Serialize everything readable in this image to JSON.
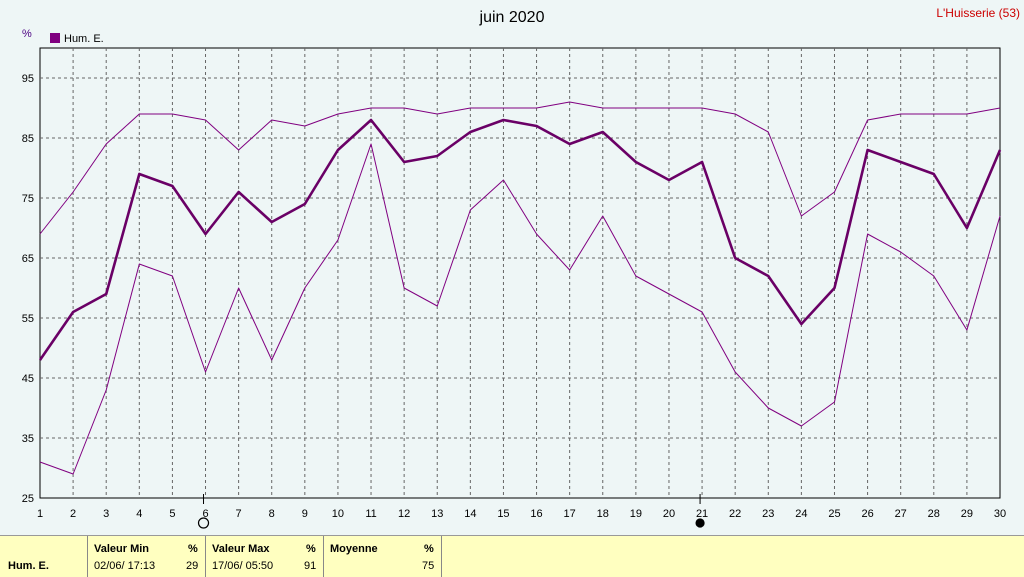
{
  "chart_data": {
    "type": "line",
    "title": "juin 2020",
    "station": "L'Huisserie (53)",
    "unit": "%",
    "legend": "Hum. E.",
    "x": [
      1,
      2,
      3,
      4,
      5,
      6,
      7,
      8,
      9,
      10,
      11,
      12,
      13,
      14,
      15,
      16,
      17,
      18,
      19,
      20,
      21,
      22,
      23,
      24,
      25,
      26,
      27,
      28,
      29,
      30
    ],
    "ylim": [
      25,
      100
    ],
    "yticks": [
      25,
      35,
      45,
      55,
      65,
      75,
      85,
      95
    ],
    "grid": true,
    "legend_position": "top-left",
    "series": [
      {
        "role": "max",
        "color": "#800080",
        "values": [
          69,
          76,
          84,
          89,
          89,
          88,
          83,
          88,
          87,
          89,
          90,
          90,
          89,
          90,
          90,
          90,
          91,
          90,
          90,
          90,
          90,
          89,
          86,
          72,
          76,
          88,
          89,
          89,
          89,
          90
        ]
      },
      {
        "role": "mean",
        "color": "#6a0066",
        "values": [
          48,
          56,
          59,
          79,
          77,
          69,
          76,
          71,
          74,
          83,
          88,
          81,
          82,
          86,
          88,
          87,
          84,
          86,
          81,
          78,
          81,
          65,
          62,
          54,
          60,
          83,
          81,
          79,
          70,
          83
        ]
      },
      {
        "role": "min",
        "color": "#800080",
        "values": [
          31,
          29,
          43,
          64,
          62,
          46,
          60,
          48,
          60,
          68,
          84,
          60,
          57,
          73,
          78,
          69,
          63,
          72,
          62,
          59,
          56,
          46,
          40,
          37,
          41,
          69,
          66,
          62,
          53,
          72
        ]
      }
    ],
    "moon_phases": [
      {
        "x": 6,
        "phase": "full"
      },
      {
        "x": 21,
        "phase": "new"
      }
    ]
  },
  "footer": {
    "series_name": "Hum. E.",
    "min": {
      "label": "Valeur Min",
      "unit": "%",
      "date": "02/06/ 17:13",
      "value": "29"
    },
    "max": {
      "label": "Valeur Max",
      "unit": "%",
      "date": "17/06/ 05:50",
      "value": "91"
    },
    "mean": {
      "label": "Moyenne",
      "unit": "%",
      "value": "75"
    }
  }
}
